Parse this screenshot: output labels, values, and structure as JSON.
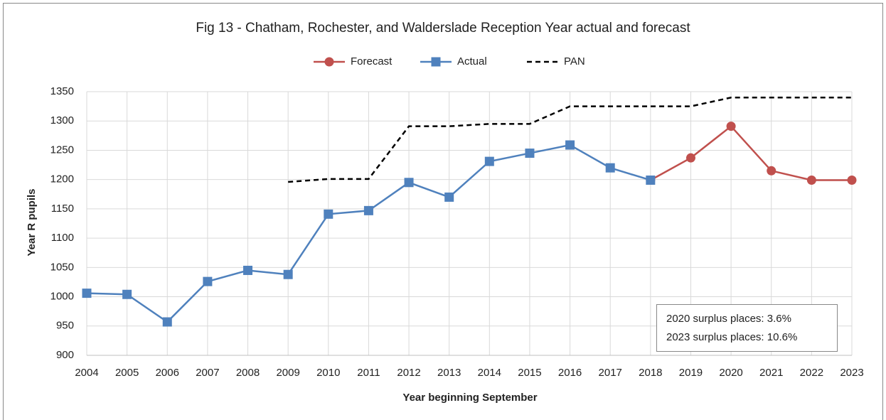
{
  "chart_data": {
    "type": "line",
    "title": "Fig 13 - Chatham, Rochester, and Walderslade Reception Year actual and forecast",
    "x_label": "Year beginning September",
    "y_label": "Year R pupils",
    "categories": [
      "2004",
      "2005",
      "2006",
      "2007",
      "2008",
      "2009",
      "2010",
      "2011",
      "2012",
      "2013",
      "2014",
      "2015",
      "2016",
      "2017",
      "2018",
      "2019",
      "2020",
      "2021",
      "2022",
      "2023"
    ],
    "series": [
      {
        "name": "Forecast",
        "color": "#c0504d",
        "line_style": "solid",
        "marker": "circle",
        "values": [
          null,
          null,
          null,
          null,
          null,
          null,
          null,
          null,
          null,
          null,
          null,
          null,
          null,
          null,
          1199,
          1237,
          1291,
          1215,
          1199,
          1199
        ]
      },
      {
        "name": "Actual",
        "color": "#4f81bd",
        "line_style": "solid",
        "marker": "square",
        "values": [
          1006,
          1004,
          957,
          1026,
          1045,
          1038,
          1141,
          1147,
          1195,
          1170,
          1231,
          1245,
          1259,
          1220,
          1199,
          null,
          null,
          null,
          null,
          null
        ]
      },
      {
        "name": "PAN",
        "color": "#000000",
        "line_style": "dashed",
        "marker": "none",
        "values": [
          null,
          null,
          null,
          null,
          null,
          1196,
          1201,
          1201,
          1291,
          1291,
          1295,
          1295,
          1325,
          1325,
          1325,
          1325,
          1340,
          1340,
          1340,
          1340
        ]
      }
    ],
    "ylim": [
      900,
      1350
    ],
    "yticks": [
      900,
      950,
      1000,
      1050,
      1100,
      1150,
      1200,
      1250,
      1300,
      1350
    ],
    "grid": true,
    "legend": "top",
    "annotations": [
      "2020 surplus places: 3.6%",
      "2023 surplus places: 10.6%"
    ]
  }
}
